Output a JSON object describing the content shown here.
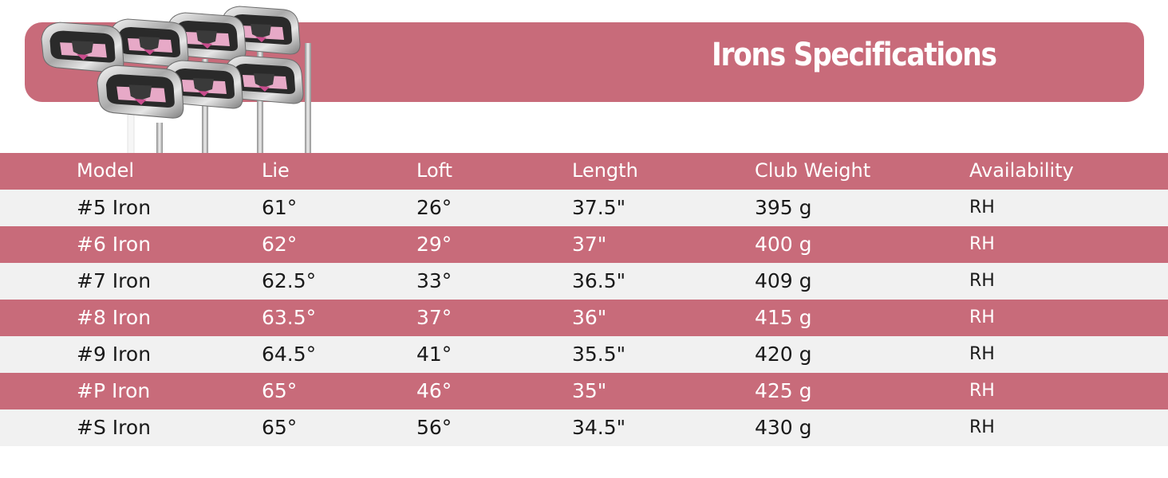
{
  "title": "Irons Specifications",
  "colors": {
    "accent": "#c86b7a",
    "row_alt": "#f1f1f1",
    "club_pink": "#e7a9c7"
  },
  "product_image": "iron-set-image",
  "table": {
    "headers": [
      "Model",
      "Lie",
      "Loft",
      "Length",
      "Club Weight",
      "Availability"
    ],
    "rows": [
      [
        "#5 Iron",
        "61°",
        "26°",
        "37.5\"",
        "395 g",
        "RH"
      ],
      [
        "#6 Iron",
        "62°",
        "29°",
        "37\"",
        "400 g",
        "RH"
      ],
      [
        "#7 Iron",
        "62.5°",
        "33°",
        "36.5\"",
        "409 g",
        "RH"
      ],
      [
        "#8 Iron",
        "63.5°",
        "37°",
        "36\"",
        "415 g",
        "RH"
      ],
      [
        "#9 Iron",
        "64.5°",
        "41°",
        "35.5\"",
        "420 g",
        "RH"
      ],
      [
        "#P Iron",
        "65°",
        "46°",
        "35\"",
        "425 g",
        "RH"
      ],
      [
        "#S Iron",
        "65°",
        "56°",
        "34.5\"",
        "430 g",
        "RH"
      ]
    ]
  }
}
